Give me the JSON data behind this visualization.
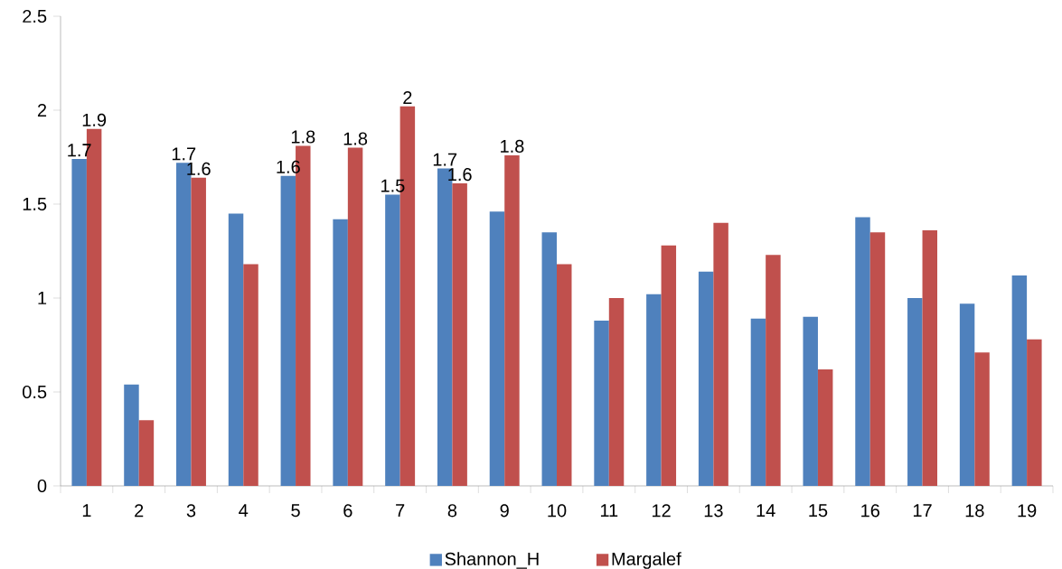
{
  "chart_data": {
    "type": "bar",
    "categories": [
      "1",
      "2",
      "3",
      "4",
      "5",
      "6",
      "7",
      "8",
      "9",
      "10",
      "11",
      "12",
      "13",
      "14",
      "15",
      "16",
      "17",
      "18",
      "19"
    ],
    "series": [
      {
        "name": "Shannon_H",
        "color": "#4f81bd",
        "values": [
          1.74,
          0.54,
          1.72,
          1.45,
          1.65,
          1.42,
          1.55,
          1.69,
          1.46,
          1.35,
          0.88,
          1.02,
          1.14,
          0.89,
          0.9,
          1.43,
          1.0,
          0.97,
          1.12
        ],
        "value_labels": [
          "1.7",
          null,
          "1.7",
          null,
          "1.6",
          null,
          "1.5",
          "1.7",
          null,
          null,
          null,
          null,
          null,
          null,
          null,
          null,
          null,
          null,
          null
        ]
      },
      {
        "name": "Margalef",
        "color": "#c0504d",
        "values": [
          1.9,
          0.35,
          1.64,
          1.18,
          1.81,
          1.8,
          2.02,
          1.61,
          1.76,
          1.18,
          1.0,
          1.28,
          1.4,
          1.23,
          0.62,
          1.35,
          1.36,
          0.71,
          0.78
        ],
        "value_labels": [
          "1.9",
          null,
          "1.6",
          null,
          "1.8",
          "1.8",
          "2",
          "1.6",
          "1.8",
          null,
          null,
          null,
          null,
          null,
          null,
          null,
          null,
          null,
          null
        ]
      }
    ],
    "ylim": [
      0,
      2.5
    ],
    "yticks": [
      0,
      0.5,
      1,
      1.5,
      2,
      2.5
    ],
    "legend": "bottom"
  }
}
